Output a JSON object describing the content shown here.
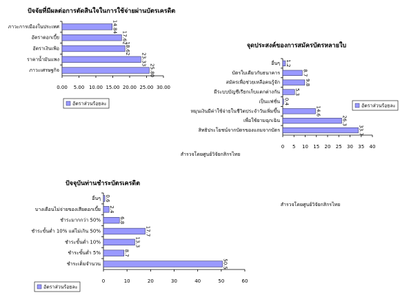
{
  "chart_data": [
    {
      "type": "bar",
      "orientation": "horizontal",
      "title": "ปัจจัยที่มีผลต่อการตัดสินใจในการใช้จ่ายผ่านบัตรเครดิต",
      "categories": [
        "ภาวะการเมืองในประเทศ",
        "อัตราดอกเบี้ย",
        "อัตราเงินเฟ้อ",
        "ราคาน้ำมันแพง",
        "ภาวะเศรษฐกิจ"
      ],
      "series": [
        {
          "name": "อัตราส่วนร้อยละ",
          "color": "#9999ff",
          "values": [
            14.84,
            17.62,
            18.62,
            23.33,
            25.8
          ],
          "value_labels": [
            "14.84",
            "17.62",
            "18.62",
            "23.33",
            "25.80"
          ]
        }
      ],
      "xlim": [
        0,
        30
      ],
      "xticks": [
        {
          "value": 0,
          "label": "0.00"
        },
        {
          "value": 5,
          "label": "5.00"
        },
        {
          "value": 10,
          "label": "10.00"
        },
        {
          "value": 15,
          "label": "15.00"
        },
        {
          "value": 20,
          "label": "20.00"
        },
        {
          "value": 25,
          "label": "25.00"
        },
        {
          "value": 30,
          "label": "30.00"
        }
      ],
      "legend": "bottom-left"
    },
    {
      "type": "bar",
      "orientation": "horizontal",
      "title": "จุดประสงค์ของการสมัครบัตรหลายใบ",
      "categories": [
        "อื่นๆ",
        "บัตรใบเดียวกับธนาคาร",
        "สมัครเพื่อช่วยเหลือคนรู้จัก",
        "มีระบบบัญชีเรียกเก็บแตกต่างกัน",
        "เป็นแฟชั่น",
        "หมุนเงินมีค่าใช้จ่ายในชีวิตประจำวันเพิ่มขึ้น",
        "เพื่อใช้ยามฉุกเฉิน",
        "สิทธิประโยชน์จากบัตรของแถมจากบัตร"
      ],
      "series": [
        {
          "name": "อัตราส่วนร้อยละ",
          "color": "#9999ff",
          "values": [
            1.2,
            8.7,
            9.8,
            5.3,
            0.4,
            14.6,
            26.3,
            33.7
          ]
        }
      ],
      "xlim": [
        0,
        40
      ],
      "xticks": [
        0,
        5,
        10,
        15,
        20,
        25,
        30,
        35,
        40
      ],
      "source": "สำรวจโดยศูนย์วิจัยกสิกรไทย",
      "legend": "right"
    },
    {
      "type": "bar",
      "orientation": "horizontal",
      "title": "ปัจจุบันท่านชำระบัตรเครดิต",
      "categories": [
        "อื่นๆ",
        "บางเดือนไม่จ่ายของเสียดอกเบี้ย",
        "ชำระมากกว่า 50%",
        "ชำระขั้นต่ำ 10% แต่ไม่เกิน 50%",
        "ชำระขั้นต่ำ 10%",
        "ชำระขั้นต่ำ 5%",
        "ชำระเต็มจำนวน"
      ],
      "series": [
        {
          "name": "อัตราส่วนร้อยละ",
          "color": "#9999ff",
          "values": [
            0.6,
            2.4,
            6.8,
            17.7,
            13.3,
            8.7,
            50.5
          ]
        }
      ],
      "xlim": [
        0,
        60
      ],
      "xticks": [
        0,
        10,
        20,
        30,
        40,
        50,
        60
      ],
      "source": "สำรวจโดยศูนย์วิจัยกสิกรไทย",
      "legend": "bottom-left"
    }
  ]
}
